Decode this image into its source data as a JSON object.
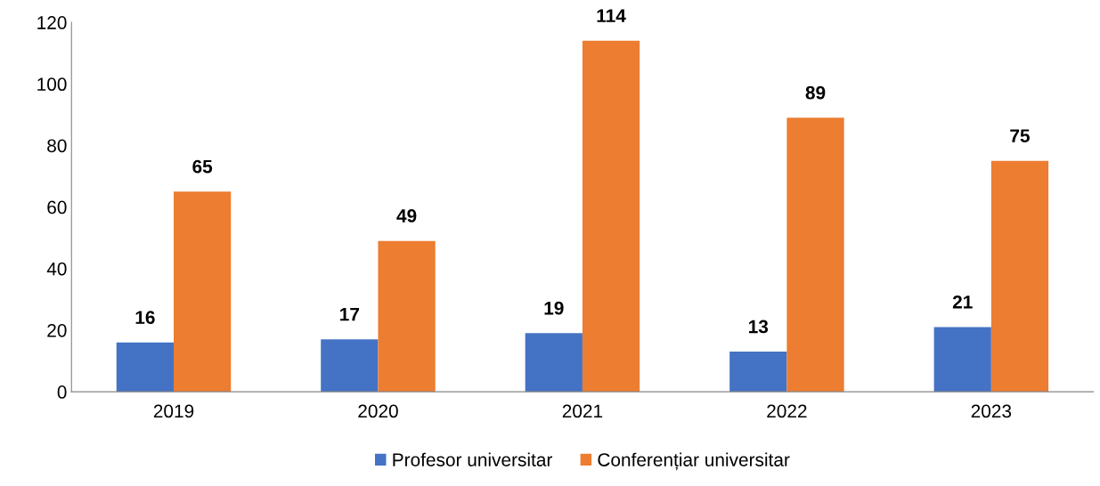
{
  "chart_data": {
    "type": "bar",
    "categories": [
      "2019",
      "2020",
      "2021",
      "2022",
      "2023"
    ],
    "series": [
      {
        "name": "Profesor universitar",
        "color": "#4472c4",
        "values": [
          16,
          17,
          19,
          13,
          21
        ]
      },
      {
        "name": "Conferențiar universitar",
        "color": "#ed7d31",
        "values": [
          65,
          49,
          114,
          89,
          75
        ]
      }
    ],
    "ylim": [
      0,
      120
    ],
    "yticks": [
      0,
      20,
      40,
      60,
      80,
      100,
      120
    ],
    "grid": false,
    "legend": "bottom",
    "data_labels": true
  }
}
